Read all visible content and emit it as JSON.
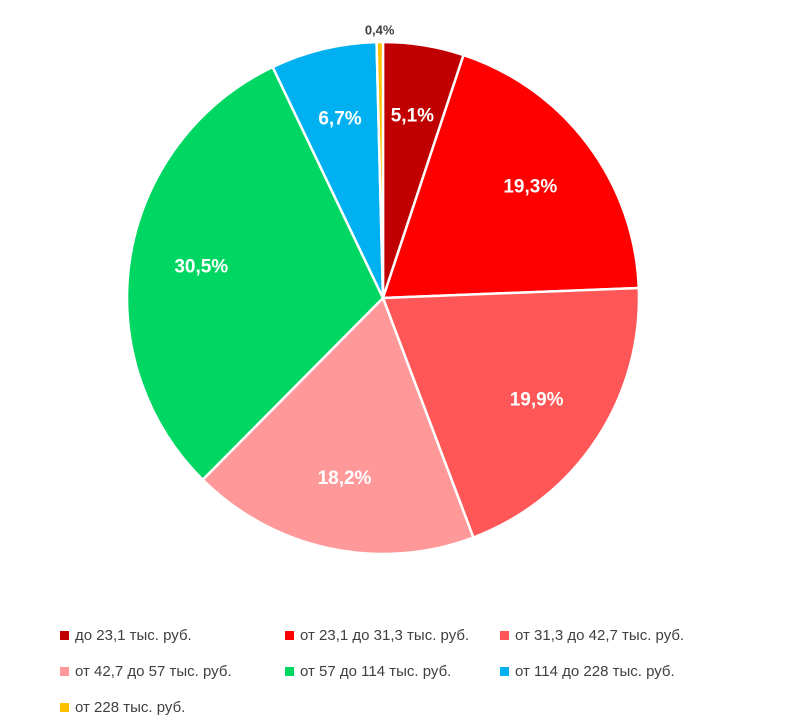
{
  "chart_data": {
    "type": "pie",
    "title": "",
    "categories": [
      "до 23,1 тыс. руб.",
      "от 23,1 до 31,3 тыс. руб.",
      "от 31,3 до 42,7 тыс. руб.",
      "от 42,7 до 57 тыс. руб.",
      "от 57 до 114 тыс. руб.",
      "от 114 до 228 тыс. руб.",
      "от 228 тыс. руб."
    ],
    "values": [
      5.1,
      19.3,
      19.9,
      18.2,
      30.5,
      6.7,
      0.4
    ],
    "labels": [
      "5,1%",
      "19,3%",
      "19,9%",
      "18,2%",
      "30,5%",
      "6,7%",
      "0,4%"
    ],
    "colors": [
      "#c00000",
      "#ff0000",
      "#ff5757",
      "#ff9999",
      "#00d763",
      "#00b0f0",
      "#ffc000"
    ],
    "legend_position": "bottom"
  }
}
